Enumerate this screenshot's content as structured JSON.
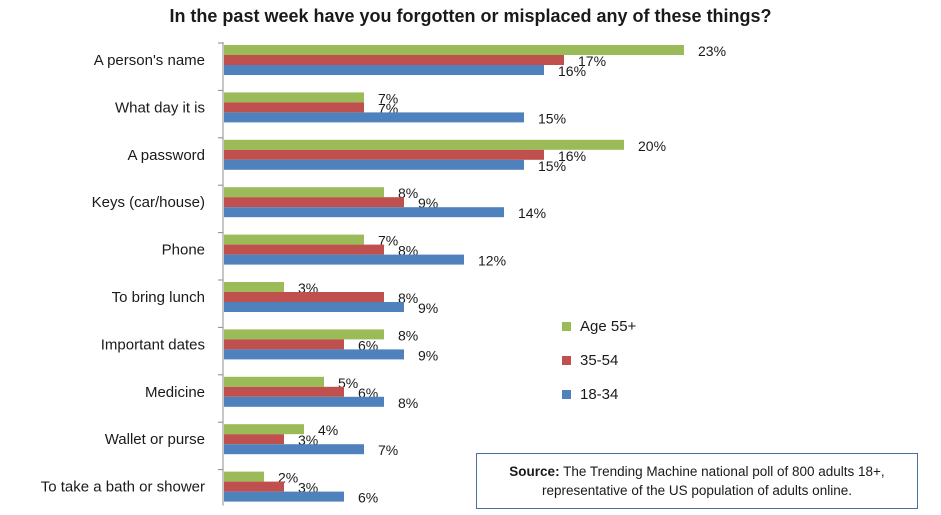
{
  "chart_data": {
    "type": "bar",
    "orientation": "horizontal",
    "title": "In the past week have you forgotten or misplaced any of these things?",
    "categories": [
      "A person's name",
      "What day it is",
      "A password",
      "Keys (car/house)",
      "Phone",
      "To bring lunch",
      "Important dates",
      "Medicine",
      "Wallet or purse",
      "To take a bath or shower"
    ],
    "series": [
      {
        "name": "Age 55+",
        "color": "#9bbb59",
        "values": [
          23,
          7,
          20,
          8,
          7,
          3,
          8,
          5,
          4,
          2
        ]
      },
      {
        "name": "35-54",
        "color": "#c0504d",
        "values": [
          17,
          7,
          16,
          9,
          8,
          8,
          6,
          6,
          3,
          3
        ]
      },
      {
        "name": "18-34",
        "color": "#4f81bd",
        "values": [
          16,
          15,
          15,
          14,
          12,
          9,
          9,
          8,
          7,
          6
        ]
      }
    ],
    "value_suffix": "%",
    "xlim": [
      0,
      25
    ],
    "grid": false,
    "legend_position": "right"
  },
  "source": {
    "label": "Source:",
    "line1": "The Trending Machine national poll of 800 adults 18+,",
    "line2": "representative of the US population of adults online."
  }
}
